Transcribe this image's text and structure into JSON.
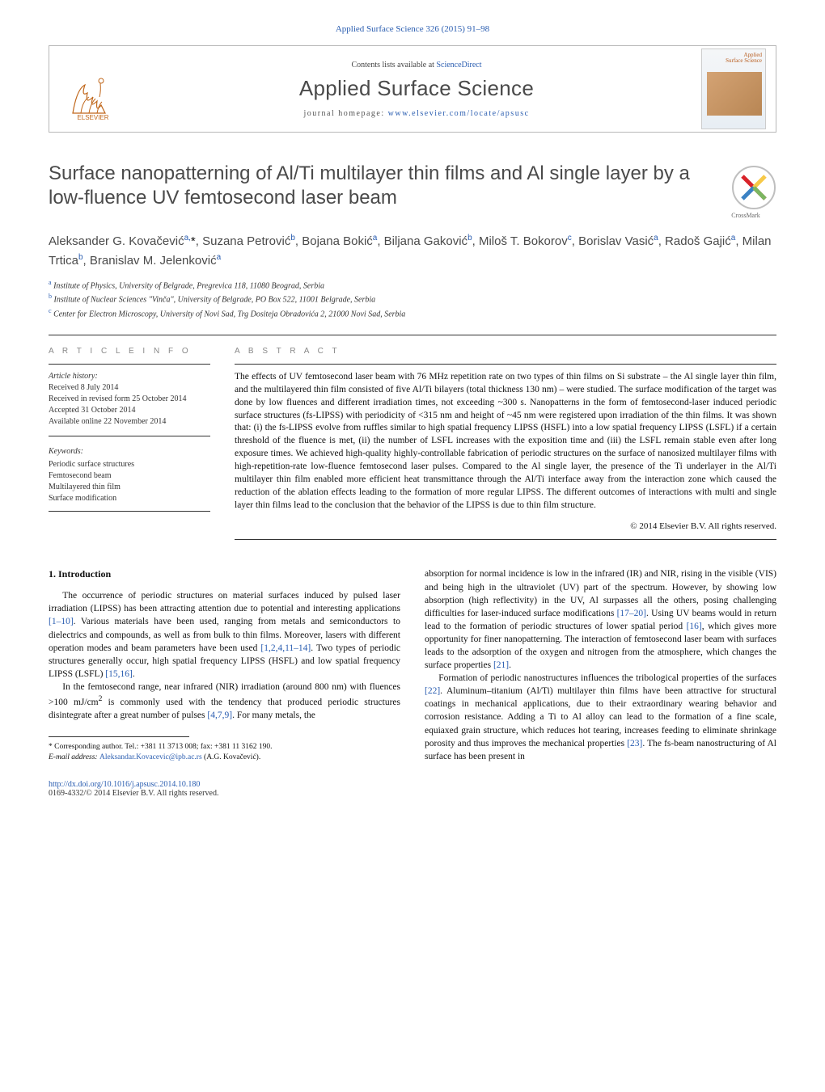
{
  "journal": {
    "top_citation": "Applied Surface Science 326 (2015) 91–98",
    "contents_prefix": "Contents lists available at ",
    "contents_site": "ScienceDirect",
    "name": "Applied Surface Science",
    "homepage_label": "journal homepage: ",
    "homepage_url": "www.elsevier.com/locate/apsusc",
    "cover_title": "Applied\nSurface Science",
    "publisher_logo_label": "ELSEVIER"
  },
  "crossmark": {
    "label": "CrossMark"
  },
  "article": {
    "title": "Surface nanopatterning of Al/Ti multilayer thin films and Al single layer by a low-fluence UV femtosecond laser beam",
    "authors_html": "Aleksander G. Kovačević<sup>a,</sup><span class='asterisk'>*</span>, Suzana Petrović<sup>b</sup>, Bojana Bokić<sup>a</sup>, Biljana Gaković<sup>b</sup>, Miloš T. Bokorov<sup>c</sup>, Borislav Vasić<sup>a</sup>, Radoš Gajić<sup>a</sup>, Milan Trtica<sup>b</sup>, Branislav M. Jelenković<sup>a</sup>",
    "affiliations": [
      {
        "sup": "a",
        "text": "Institute of Physics, University of Belgrade, Pregrevica 118, 11080 Beograd, Serbia"
      },
      {
        "sup": "b",
        "text": "Institute of Nuclear Sciences \"Vinča\", University of Belgrade, PO Box 522, 11001 Belgrade, Serbia"
      },
      {
        "sup": "c",
        "text": "Center for Electron Microscopy, University of Novi Sad, Trg Dositeja Obradovića 2, 21000 Novi Sad, Serbia"
      }
    ]
  },
  "info": {
    "heading": "a r t i c l e   i n f o",
    "history_head": "Article history:",
    "history": [
      "Received 8 July 2014",
      "Received in revised form 25 October 2014",
      "Accepted 31 October 2014",
      "Available online 22 November 2014"
    ],
    "keywords_head": "Keywords:",
    "keywords": [
      "Periodic surface structures",
      "Femtosecond beam",
      "Multilayered thin film",
      "Surface modification"
    ]
  },
  "abstract": {
    "heading": "a b s t r a c t",
    "text": "The effects of UV femtosecond laser beam with 76 MHz repetition rate on two types of thin films on Si substrate – the Al single layer thin film, and the multilayered thin film consisted of five Al/Ti bilayers (total thickness 130 nm) – were studied. The surface modification of the target was done by low fluences and different irradiation times, not exceeding ~300 s. Nanopatterns in the form of femtosecond-laser induced periodic surface structures (fs-LIPSS) with periodicity of <315 nm and height of ~45 nm were registered upon irradiation of the thin films. It was shown that: (i) the fs-LIPSS evolve from ruffles similar to high spatial frequency LIPSS (HSFL) into a low spatial frequency LIPSS (LSFL) if a certain threshold of the fluence is met, (ii) the number of LSFL increases with the exposition time and (iii) the LSFL remain stable even after long exposure times. We achieved high-quality highly-controllable fabrication of periodic structures on the surface of nanosized multilayer films with high-repetition-rate low-fluence femtosecond laser pulses. Compared to the Al single layer, the presence of the Ti underlayer in the Al/Ti multilayer thin film enabled more efficient heat transmittance through the Al/Ti interface away from the interaction zone which caused the reduction of the ablation effects leading to the formation of more regular LIPSS. The different outcomes of interactions with multi and single layer thin films lead to the conclusion that the behavior of the LIPSS is due to thin film structure.",
    "copyright": "© 2014 Elsevier B.V. All rights reserved."
  },
  "body": {
    "sec1_head": "1.  Introduction",
    "left_paras": [
      "The occurrence of periodic structures on material surfaces induced by pulsed laser irradiation (LIPSS) has been attracting attention due to potential and interesting applications <span class='ref'>[1–10]</span>. Various materials have been used, ranging from metals and semiconductors to dielectrics and compounds, as well as from bulk to thin films. Moreover, lasers with different operation modes and beam parameters have been used <span class='ref'>[1,2,4,11–14]</span>. Two types of periodic structures generally occur, high spatial frequency LIPSS (HSFL) and low spatial frequency LIPSS (LSFL) <span class='ref'>[15,16]</span>.",
      "In the femtosecond range, near infrared (NIR) irradiation (around 800 nm) with fluences >100 mJ/cm<sup>2</sup> is commonly used with the tendency that produced periodic structures disintegrate after a great number of pulses <span class='ref'>[4,7,9]</span>. For many metals, the"
    ],
    "right_paras": [
      "absorption for normal incidence is low in the infrared (IR) and NIR, rising in the visible (VIS) and being high in the ultraviolet (UV) part of the spectrum. However, by showing low absorption (high reflectivity) in the UV, Al surpasses all the others, posing challenging difficulties for laser-induced surface modifications <span class='ref'>[17–20]</span>. Using UV beams would in return lead to the formation of periodic structures of lower spatial period <span class='ref'>[16]</span>, which gives more opportunity for finer nanopatterning. The interaction of femtosecond laser beam with surfaces leads to the adsorption of the oxygen and nitrogen from the atmosphere, which changes the surface properties <span class='ref'>[21]</span>.",
      "Formation of periodic nanostructures influences the tribological properties of the surfaces <span class='ref'>[22]</span>. Aluminum–titanium (Al/Ti) multilayer thin films have been attractive for structural coatings in mechanical applications, due to their extraordinary wearing behavior and corrosion resistance. Adding a Ti to Al alloy can lead to the formation of a fine scale, equiaxed grain structure, which reduces hot tearing, increases feeding to eliminate shrinkage porosity and thus improves the mechanical properties <span class='ref'>[23]</span>. The fs-beam nanostructuring of Al surface has been present in"
    ]
  },
  "footnote": {
    "marker": "*",
    "line1": "Corresponding author. Tel.: +381 11 3713 008; fax: +381 11 3162 190.",
    "email_label": "E-mail address: ",
    "email": "Aleksandar.Kovacevic@ipb.ac.rs",
    "email_tail": " (A.G. Kovačević)."
  },
  "footer": {
    "doi_url": "http://dx.doi.org/10.1016/j.apsusc.2014.10.180",
    "issn_line": "0169-4332/© 2014 Elsevier B.V. All rights reserved."
  },
  "colors": {
    "link": "#2a5db0",
    "elsevier_orange": "#eb6b0b",
    "text_gray": "#4a4a4a"
  }
}
